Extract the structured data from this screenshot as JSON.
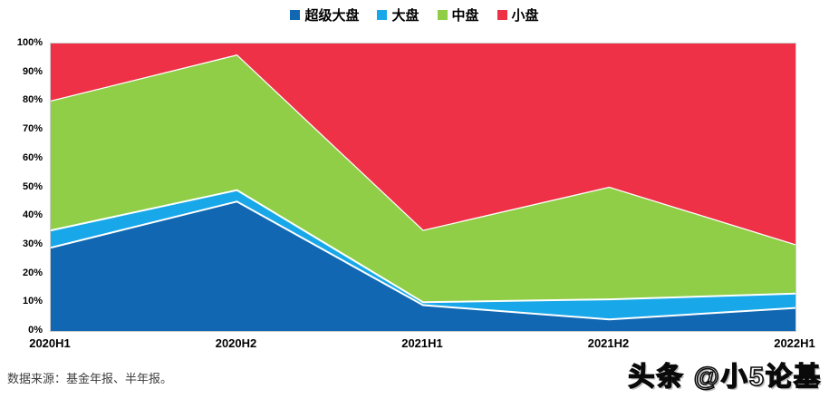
{
  "chart_data": {
    "type": "area",
    "stacked": true,
    "percent": true,
    "title": "",
    "xlabel": "",
    "ylabel": "",
    "ylim": [
      0,
      100
    ],
    "grid": false,
    "legend_position": "top",
    "categories": [
      "2020H1",
      "2020H2",
      "2021H1",
      "2021H2",
      "2022H1"
    ],
    "series": [
      {
        "name": "超级大盘",
        "color": "#1167B1",
        "values": [
          29,
          45,
          9,
          4,
          8
        ]
      },
      {
        "name": "大盘",
        "color": "#18A8E9",
        "values": [
          6,
          4,
          1,
          7,
          5
        ]
      },
      {
        "name": "中盘",
        "color": "#8FCE46",
        "values": [
          45,
          47,
          25,
          39,
          17
        ]
      },
      {
        "name": "小盘",
        "color": "#EE3147",
        "values": [
          20,
          4,
          65,
          50,
          70
        ]
      }
    ],
    "yticks": [
      "0%",
      "10%",
      "20%",
      "30%",
      "40%",
      "50%",
      "60%",
      "70%",
      "80%",
      "90%",
      "100%"
    ],
    "separator_color": "#ffffff"
  },
  "footer": {
    "source_note": "数据来源：基金年报、半年报。",
    "watermark": "头条 @小5论基"
  }
}
